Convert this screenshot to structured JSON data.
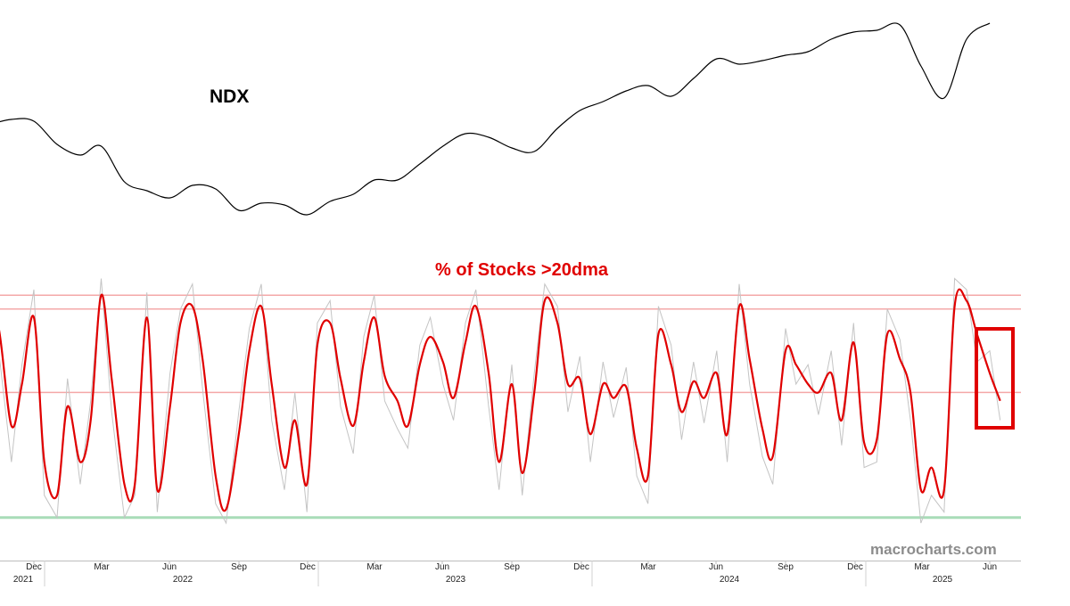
{
  "chart_data": [
    {
      "type": "line",
      "series": [
        {
          "name": "NDX",
          "x": [
            "2021-10-01",
            "2021-11-01",
            "2021-12-01",
            "2022-01-01",
            "2022-02-01",
            "2022-03-01",
            "2022-04-01",
            "2022-05-01",
            "2022-06-01",
            "2022-07-01",
            "2022-08-01",
            "2022-09-01",
            "2022-10-01",
            "2022-11-01",
            "2022-12-01",
            "2023-01-01",
            "2023-02-01",
            "2023-03-01",
            "2023-04-01",
            "2023-05-01",
            "2023-06-01",
            "2023-07-01",
            "2023-08-01",
            "2023-09-01",
            "2023-10-01",
            "2023-11-01",
            "2023-12-01",
            "2024-01-01",
            "2024-02-01",
            "2024-03-01",
            "2024-04-01",
            "2024-05-01",
            "2024-06-01",
            "2024-07-01",
            "2024-08-01",
            "2024-09-01",
            "2024-10-01",
            "2024-11-01",
            "2024-12-01",
            "2025-01-01",
            "2025-02-01",
            "2025-03-01",
            "2025-04-01",
            "2025-05-01",
            "2025-06-01"
          ],
          "values": [
            16000,
            16300,
            16200,
            14900,
            14300,
            14800,
            12800,
            12300,
            11900,
            12600,
            12400,
            11200,
            11600,
            11500,
            10950,
            11700,
            12100,
            12900,
            12900,
            13800,
            14800,
            15500,
            15300,
            14700,
            14500,
            15800,
            16800,
            17300,
            17900,
            18200,
            17600,
            18600,
            19700,
            19400,
            19600,
            19900,
            20100,
            20800,
            21200,
            21300,
            21600,
            19300,
            17500,
            20800,
            21700
          ]
        }
      ]
    },
    {
      "type": "line",
      "title": "% of Stocks >20dma",
      "x_ticks": [
        "Dec",
        "Mar",
        "Jun",
        "Sep",
        "Dec",
        "Mar",
        "Jun",
        "Sep",
        "Dec",
        "Mar",
        "Jun",
        "Sep",
        "Dec",
        "Mar",
        "Jun"
      ],
      "x_years": [
        "2021",
        "2022",
        "2023",
        "2024",
        "2025"
      ],
      "ylim": [
        0,
        100
      ],
      "reference_lines": [
        {
          "value": 90,
          "color": "#f4a8a8"
        },
        {
          "value": 85,
          "color": "#f4a8a8"
        },
        {
          "value": 55,
          "color": "#f4a8a8"
        },
        {
          "value": 10,
          "color": "#a8dcb8"
        }
      ],
      "series": [
        {
          "style": "smoothed",
          "color": "#e00000",
          "x": [
            "2021-10-01",
            "2021-10-15",
            "2021-11-01",
            "2021-11-15",
            "2021-12-01",
            "2021-12-15",
            "2022-01-01",
            "2022-01-15",
            "2022-02-01",
            "2022-02-15",
            "2022-03-01",
            "2022-03-15",
            "2022-04-01",
            "2022-04-15",
            "2022-05-01",
            "2022-05-15",
            "2022-06-01",
            "2022-06-15",
            "2022-07-01",
            "2022-07-15",
            "2022-08-01",
            "2022-08-15",
            "2022-09-01",
            "2022-09-15",
            "2022-10-01",
            "2022-10-15",
            "2022-11-01",
            "2022-11-15",
            "2022-12-01",
            "2022-12-15",
            "2023-01-01",
            "2023-01-15",
            "2023-02-01",
            "2023-02-15",
            "2023-03-01",
            "2023-03-15",
            "2023-04-01",
            "2023-04-15",
            "2023-05-01",
            "2023-05-15",
            "2023-06-01",
            "2023-06-15",
            "2023-07-01",
            "2023-07-15",
            "2023-08-01",
            "2023-08-15",
            "2023-09-01",
            "2023-09-15",
            "2023-10-01",
            "2023-10-15",
            "2023-11-01",
            "2023-11-15",
            "2023-12-01",
            "2023-12-15",
            "2024-01-01",
            "2024-01-15",
            "2024-02-01",
            "2024-02-15",
            "2024-03-01",
            "2024-03-15",
            "2024-04-01",
            "2024-04-15",
            "2024-05-01",
            "2024-05-15",
            "2024-06-01",
            "2024-06-15",
            "2024-07-01",
            "2024-07-15",
            "2024-08-01",
            "2024-08-15",
            "2024-09-01",
            "2024-09-15",
            "2024-10-01",
            "2024-10-15",
            "2024-11-01",
            "2024-11-15",
            "2024-12-01",
            "2024-12-15",
            "2025-01-01",
            "2025-01-15",
            "2025-02-01",
            "2025-02-15",
            "2025-03-01",
            "2025-03-15",
            "2025-04-01",
            "2025-04-15",
            "2025-05-01",
            "2025-05-15",
            "2025-06-01",
            "2025-06-15"
          ],
          "values": [
            80,
            78,
            43,
            58,
            82,
            30,
            18,
            50,
            30,
            45,
            90,
            60,
            22,
            22,
            82,
            20,
            50,
            80,
            86,
            66,
            25,
            13,
            40,
            70,
            86,
            58,
            28,
            45,
            22,
            72,
            80,
            60,
            43,
            66,
            82,
            61,
            52,
            43,
            65,
            75,
            66,
            53,
            73,
            86,
            62,
            30,
            58,
            26,
            55,
            88,
            80,
            58,
            60,
            40,
            58,
            53,
            57,
            35,
            25,
            76,
            65,
            48,
            59,
            53,
            62,
            40,
            86,
            67,
            42,
            32,
            70,
            65,
            58,
            55,
            62,
            45,
            73,
            37,
            38,
            76,
            67,
            55,
            20,
            28,
            20,
            86,
            88,
            76,
            62,
            52
          ]
        },
        {
          "style": "raw",
          "color": "#c4c4c4",
          "x": [
            "2021-10-01",
            "2021-10-15",
            "2021-11-01",
            "2021-11-15",
            "2021-12-01",
            "2021-12-15",
            "2022-01-01",
            "2022-01-15",
            "2022-02-01",
            "2022-02-15",
            "2022-03-01",
            "2022-03-15",
            "2022-04-01",
            "2022-04-15",
            "2022-05-01",
            "2022-05-15",
            "2022-06-01",
            "2022-06-15",
            "2022-07-01",
            "2022-07-15",
            "2022-08-01",
            "2022-08-15",
            "2022-09-01",
            "2022-09-15",
            "2022-10-01",
            "2022-10-15",
            "2022-11-01",
            "2022-11-15",
            "2022-12-01",
            "2022-12-15",
            "2023-01-01",
            "2023-01-15",
            "2023-02-01",
            "2023-02-15",
            "2023-03-01",
            "2023-03-15",
            "2023-04-01",
            "2023-04-15",
            "2023-05-01",
            "2023-05-15",
            "2023-06-01",
            "2023-06-15",
            "2023-07-01",
            "2023-07-15",
            "2023-08-01",
            "2023-08-15",
            "2023-09-01",
            "2023-09-15",
            "2023-10-01",
            "2023-10-15",
            "2023-11-01",
            "2023-11-15",
            "2023-12-01",
            "2023-12-15",
            "2024-01-01",
            "2024-01-15",
            "2024-02-01",
            "2024-02-15",
            "2024-03-01",
            "2024-03-15",
            "2024-04-01",
            "2024-04-15",
            "2024-05-01",
            "2024-05-15",
            "2024-06-01",
            "2024-06-15",
            "2024-07-01",
            "2024-07-15",
            "2024-08-01",
            "2024-08-15",
            "2024-09-01",
            "2024-09-15",
            "2024-10-01",
            "2024-10-15",
            "2024-11-01",
            "2024-11-15",
            "2024-12-01",
            "2024-12-15",
            "2025-01-01",
            "2025-01-15",
            "2025-02-01",
            "2025-02-15",
            "2025-03-01",
            "2025-03-15",
            "2025-04-01",
            "2025-04-15",
            "2025-05-01",
            "2025-05-15",
            "2025-06-01",
            "2025-06-15"
          ],
          "values": [
            86,
            70,
            30,
            65,
            92,
            18,
            10,
            60,
            22,
            52,
            96,
            48,
            10,
            18,
            91,
            12,
            62,
            85,
            94,
            55,
            15,
            8,
            48,
            78,
            94,
            45,
            20,
            55,
            12,
            80,
            88,
            50,
            33,
            75,
            90,
            52,
            42,
            35,
            72,
            82,
            58,
            45,
            80,
            92,
            50,
            20,
            65,
            18,
            62,
            94,
            86,
            48,
            68,
            30,
            66,
            46,
            64,
            25,
            15,
            86,
            72,
            38,
            66,
            44,
            70,
            30,
            94,
            58,
            32,
            22,
            78,
            58,
            65,
            47,
            70,
            36,
            80,
            28,
            30,
            85,
            74,
            45,
            8,
            18,
            12,
            96,
            92,
            66,
            70,
            45
          ]
        }
      ]
    }
  ],
  "labels": {
    "ndx": "NDX",
    "oscillator_title": "% of Stocks >20dma",
    "watermark": "macrocharts.com"
  },
  "colors": {
    "ndx_line": "#000000",
    "oscillator_smoothed": "#e00000",
    "oscillator_raw": "#c4c4c4",
    "overbought_lines": "#f4a8a8",
    "oversold_line": "#a8dcb8",
    "highlight_box": "#e00000",
    "title": "#e00000",
    "watermark": "#8c8c8c"
  }
}
